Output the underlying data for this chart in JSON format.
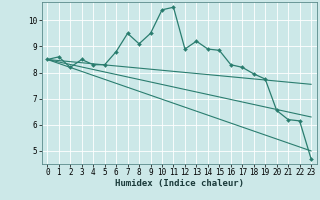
{
  "title": "",
  "xlabel": "Humidex (Indice chaleur)",
  "ylabel": "",
  "bg_color": "#cce8e8",
  "line_color": "#2a7d6f",
  "grid_color": "#b8d8d8",
  "xlim": [
    -0.5,
    23.5
  ],
  "ylim": [
    4.5,
    10.7
  ],
  "xticks": [
    0,
    1,
    2,
    3,
    4,
    5,
    6,
    7,
    8,
    9,
    10,
    11,
    12,
    13,
    14,
    15,
    16,
    17,
    18,
    19,
    20,
    21,
    22,
    23
  ],
  "yticks": [
    5,
    6,
    7,
    8,
    9,
    10
  ],
  "series1_x": [
    0,
    1,
    2,
    3,
    4,
    5,
    6,
    7,
    8,
    9,
    10,
    11,
    12,
    13,
    14,
    15,
    16,
    17,
    18,
    19,
    20,
    21,
    22,
    23
  ],
  "series1_y": [
    8.5,
    8.6,
    8.2,
    8.5,
    8.3,
    8.3,
    8.8,
    9.5,
    9.1,
    9.5,
    10.4,
    10.5,
    8.9,
    9.2,
    8.9,
    8.85,
    8.3,
    8.2,
    7.95,
    7.75,
    6.55,
    6.2,
    6.15,
    4.7
  ],
  "series2_x": [
    0,
    23
  ],
  "series2_y": [
    8.5,
    7.55
  ],
  "series3_x": [
    0,
    23
  ],
  "series3_y": [
    8.5,
    6.3
  ],
  "series4_x": [
    0,
    23
  ],
  "series4_y": [
    8.5,
    5.0
  ]
}
